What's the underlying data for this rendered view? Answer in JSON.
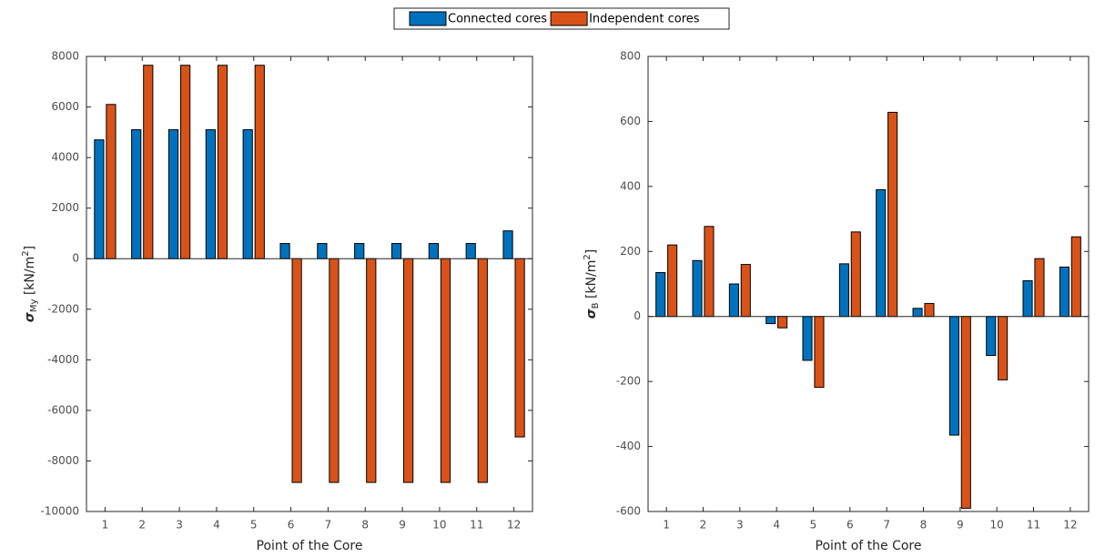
{
  "chart_data": [
    {
      "type": "bar",
      "x_label": "Point of the Core",
      "y_label": {
        "symbol": "σ",
        "subscript": "My",
        "unit": " [kN/m",
        "power": "2",
        "close": "]"
      },
      "categories": [
        "1",
        "2",
        "3",
        "4",
        "5",
        "6",
        "7",
        "8",
        "9",
        "10",
        "11",
        "12"
      ],
      "series": [
        {
          "name": "Connected cores",
          "color": "#0072bd",
          "values": [
            4700,
            5100,
            5100,
            5100,
            5100,
            600,
            600,
            600,
            600,
            600,
            600,
            1100
          ]
        },
        {
          "name": "Independent cores",
          "color": "#d95319",
          "values": [
            6100,
            7650,
            7650,
            7650,
            7650,
            -8850,
            -8850,
            -8850,
            -8850,
            -8850,
            -8850,
            -7050
          ]
        }
      ],
      "ylim": [
        -10000,
        8000
      ],
      "yticks": [
        -10000,
        -8000,
        -6000,
        -4000,
        -2000,
        0,
        2000,
        4000,
        6000,
        8000
      ]
    },
    {
      "type": "bar",
      "x_label": "Point of the Core",
      "y_label": {
        "symbol": "σ",
        "subscript": "B",
        "unit": " [kN/m",
        "power": "2",
        "close": "]"
      },
      "categories": [
        "1",
        "2",
        "3",
        "4",
        "5",
        "6",
        "7",
        "8",
        "9",
        "10",
        "11",
        "12"
      ],
      "series": [
        {
          "color": "#0072bd",
          "values": [
            135,
            172,
            100,
            -22,
            -135,
            162,
            390,
            25,
            -365,
            -120,
            110,
            152
          ]
        },
        {
          "color": "#d95319",
          "values": [
            220,
            277,
            160,
            -35,
            -218,
            260,
            628,
            40,
            -590,
            -195,
            178,
            245
          ]
        }
      ],
      "ylim": [
        -600,
        800
      ],
      "yticks": [
        -600,
        -400,
        -200,
        0,
        200,
        400,
        600,
        800
      ]
    }
  ]
}
